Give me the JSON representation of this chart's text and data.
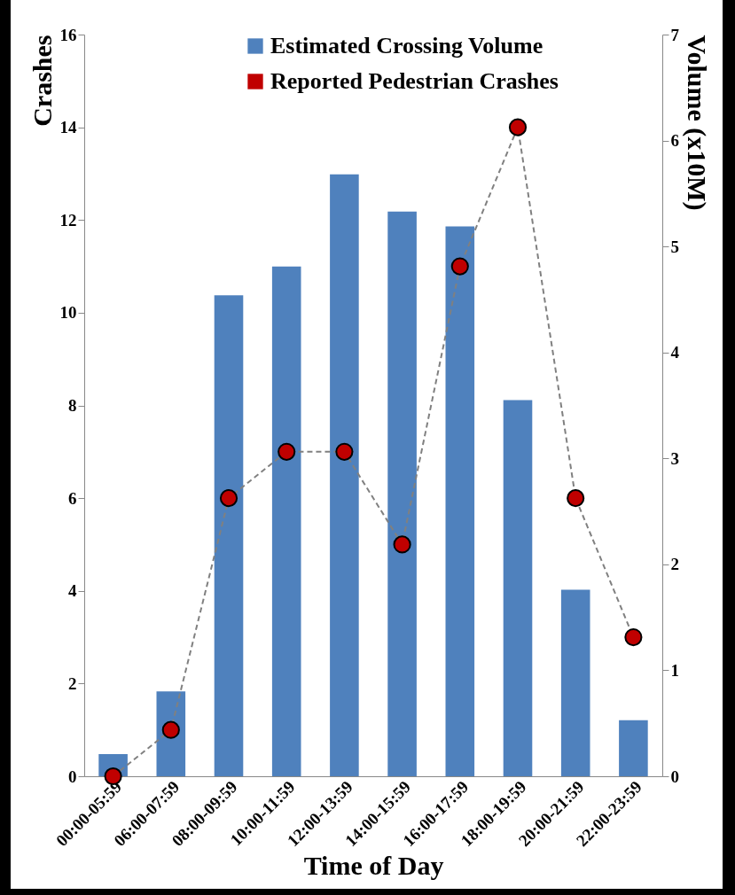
{
  "chart_data": {
    "type": "bar",
    "xlabel": "Time of Day",
    "ylabel": "Crashes",
    "y2label": "Volume (x10M)",
    "categories": [
      "00:00-05:59",
      "06:00-07:59",
      "08:00-09:59",
      "10:00-11:59",
      "12:00-13:59",
      "14:00-15:59",
      "16:00-17:59",
      "18:00-19:59",
      "20:00-21:59",
      "22:00-23:59"
    ],
    "series": [
      {
        "name": "Estimated Crossing Volume",
        "axis": "y2",
        "color": "#4f81bd",
        "values": [
          0.21,
          0.8,
          4.54,
          4.81,
          5.68,
          5.33,
          5.19,
          3.55,
          1.76,
          0.53
        ]
      },
      {
        "name": "Reported Pedestrian Crashes",
        "type": "line",
        "color": "#c00000",
        "values": [
          0,
          1,
          6,
          7,
          7,
          5,
          11,
          14,
          6,
          3
        ]
      }
    ],
    "ylim": [
      0,
      16
    ],
    "yticks": [
      0,
      2,
      4,
      6,
      8,
      10,
      12,
      14,
      16
    ],
    "y2lim": [
      0,
      7
    ],
    "y2ticks": [
      0,
      1,
      2,
      3,
      4,
      5,
      6,
      7
    ],
    "grid": false,
    "legend": "top",
    "marker": "circle",
    "line_style": "dashed"
  }
}
